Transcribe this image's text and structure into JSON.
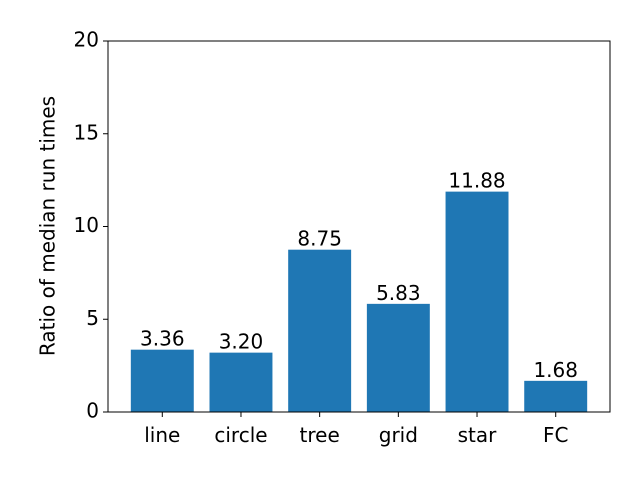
{
  "chart_data": {
    "type": "bar",
    "y_label": "Ratio of median run times",
    "categories": [
      "line",
      "circle",
      "tree",
      "grid",
      "star",
      "FC"
    ],
    "values": [
      3.36,
      3.2,
      8.75,
      5.83,
      11.88,
      1.68
    ],
    "value_labels": [
      "3.36",
      "3.20",
      "8.75",
      "5.83",
      "11.88",
      "1.68"
    ],
    "color": "#1f77b4",
    "ylim": [
      0,
      20
    ],
    "yticks": [
      0,
      5,
      10,
      15,
      20
    ],
    "grid": false
  }
}
